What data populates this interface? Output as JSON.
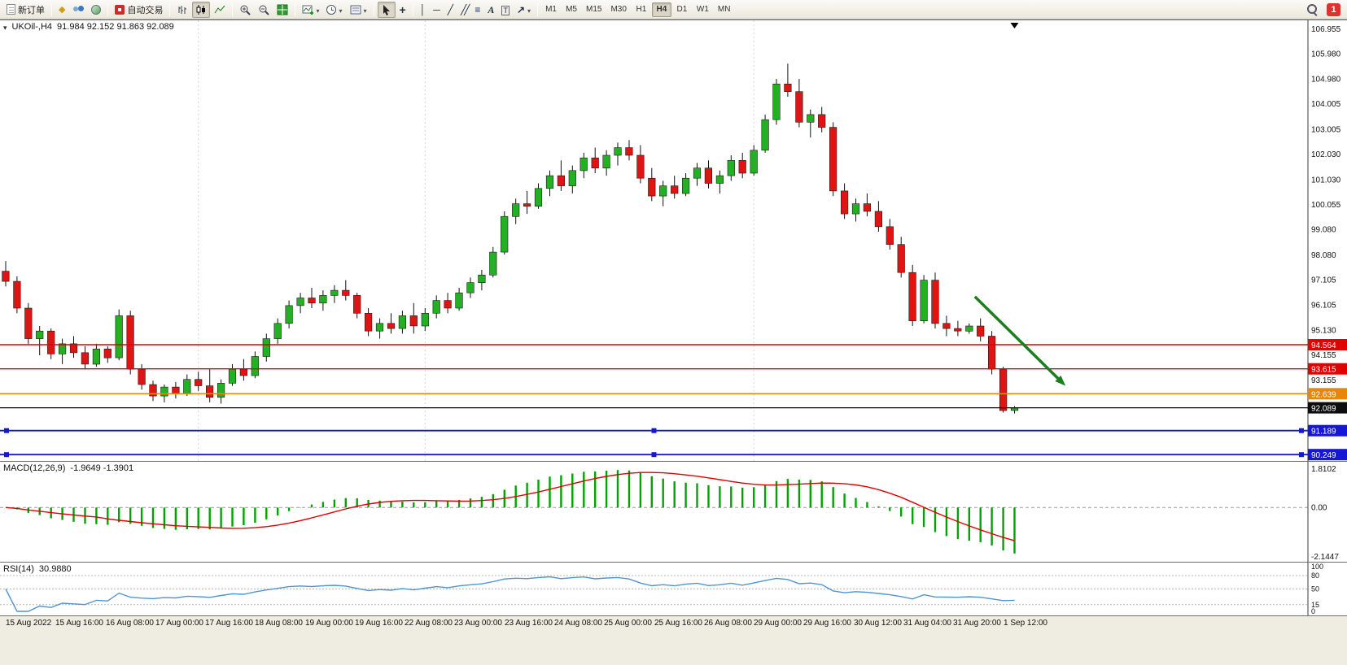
{
  "toolbar": {
    "new_order_label": "新订单",
    "autotrading_label": "自动交易",
    "timeframes": [
      "M1",
      "M5",
      "M15",
      "M30",
      "H1",
      "H4",
      "D1",
      "W1",
      "MN"
    ],
    "active_timeframe": "H4",
    "notification_badge": "1",
    "icons": [
      "new-order-icon",
      "market-watch-icon",
      "community-icon",
      "web-icon",
      "autotrading-icon",
      "bar-chart-icon",
      "candlestick-chart-icon",
      "line-chart-icon",
      "zoom-in-icon",
      "zoom-out-icon",
      "tile-windows-icon",
      "new-chart-icon",
      "clock-icon",
      "cursor-icon",
      "crosshair-icon",
      "vertical-line-icon",
      "horizontal-line-icon",
      "trendline-icon",
      "channel-icon",
      "fibonacci-icon",
      "text-icon",
      "label-icon",
      "arrow-tools-icon",
      "search-icon"
    ]
  },
  "chart": {
    "symbol_period": "UKOil-,H4",
    "ohlc": "91.984 92.152 91.863 92.089"
  },
  "price_axis": {
    "ticks": [
      "106.955",
      "105.980",
      "104.980",
      "104.005",
      "103.005",
      "102.030",
      "101.030",
      "100.055",
      "99.080",
      "98.080",
      "97.105",
      "96.105",
      "95.130",
      "94.155",
      "93.155"
    ]
  },
  "macd": {
    "name": "MACD(12,26,9)",
    "values": "-1.9649 -1.3901",
    "axis_max": "1.8102",
    "axis_zero": "0.00",
    "axis_min": "-2.1447"
  },
  "rsi": {
    "name": "RSI(14)",
    "value": "30.9880",
    "axis": [
      {
        "t": "100",
        "v": 100
      },
      {
        "t": "80",
        "v": 80
      },
      {
        "t": "50",
        "v": 50
      },
      {
        "t": "15",
        "v": 15
      },
      {
        "t": "0",
        "v": 0
      }
    ],
    "levels": [
      80,
      50,
      15
    ]
  },
  "time_axis": {
    "labels": [
      "15 Aug 2022",
      "15 Aug 16:00",
      "16 Aug 08:00",
      "17 Aug 00:00",
      "17 Aug 16:00",
      "18 Aug 08:00",
      "19 Aug 00:00",
      "19 Aug 16:00",
      "22 Aug 08:00",
      "23 Aug 00:00",
      "23 Aug 16:00",
      "24 Aug 08:00",
      "25 Aug 00:00",
      "25 Aug 16:00",
      "26 Aug 08:00",
      "29 Aug 00:00",
      "29 Aug 16:00",
      "30 Aug 12:00",
      "31 Aug 04:00",
      "31 Aug 20:00",
      "1 Sep 12:00"
    ]
  },
  "chart_data": {
    "type": "candlestick",
    "symbol": "UKOil-",
    "period": "H4",
    "ylim": [
      90.0,
      107.3
    ],
    "plot_fraction": 0.78,
    "up_color": "#23b123",
    "down_color": "#e11414",
    "wick_color": "#111111",
    "separators": [
      17,
      37,
      66
    ],
    "levels": [
      {
        "label": "94.564",
        "value": 94.564,
        "color": "#e00000",
        "width": 1.4,
        "handles": false
      },
      {
        "label": "93.615",
        "value": 93.615,
        "color": "#e00000",
        "width": 1.4,
        "handles": false
      },
      {
        "label": "92.639",
        "value": 92.639,
        "color": "#e8860b",
        "width": 1.6,
        "handles": false
      },
      {
        "label": "91.189",
        "value": 91.189,
        "color": "#1616d6",
        "width": 1.8,
        "handles": true
      },
      {
        "label": "90.249",
        "value": 90.249,
        "color": "#1616d6",
        "width": 1.8,
        "handles": true
      }
    ],
    "current_price": {
      "label": "92.089",
      "value": 92.089,
      "color": "#000000"
    },
    "arrow": {
      "from_index": 85.5,
      "from_price": 96.45,
      "to_index": 93.5,
      "to_price": 92.95,
      "color": "#1e7d1e"
    },
    "shift_marker_index": 89,
    "indicators": {
      "macd": {
        "fast": 12,
        "slow": 26,
        "signal": 9,
        "hist_color": "#00a400",
        "signal_color": "#e00000"
      },
      "rsi": {
        "period": 14,
        "color": "#4f94d4"
      }
    },
    "candles": [
      [
        97.45,
        97.85,
        96.85,
        97.05
      ],
      [
        97.05,
        97.25,
        95.8,
        96.0
      ],
      [
        96.0,
        96.2,
        94.6,
        94.8
      ],
      [
        94.8,
        95.3,
        94.15,
        95.1
      ],
      [
        95.1,
        95.2,
        94.0,
        94.2
      ],
      [
        94.2,
        94.8,
        93.8,
        94.6
      ],
      [
        94.6,
        94.9,
        94.05,
        94.25
      ],
      [
        94.25,
        94.5,
        93.6,
        93.8
      ],
      [
        93.8,
        94.6,
        93.7,
        94.4
      ],
      [
        94.4,
        94.5,
        93.85,
        94.05
      ],
      [
        94.05,
        95.95,
        93.95,
        95.7
      ],
      [
        95.7,
        95.9,
        93.4,
        93.6
      ],
      [
        93.6,
        93.8,
        92.8,
        93.0
      ],
      [
        93.0,
        93.15,
        92.35,
        92.55
      ],
      [
        92.55,
        93.0,
        92.3,
        92.9
      ],
      [
        92.9,
        93.1,
        92.45,
        92.65
      ],
      [
        92.65,
        93.4,
        92.55,
        93.2
      ],
      [
        93.2,
        93.5,
        92.75,
        92.95
      ],
      [
        92.95,
        93.6,
        92.3,
        92.5
      ],
      [
        92.5,
        93.2,
        92.25,
        93.05
      ],
      [
        93.05,
        93.8,
        92.95,
        93.6
      ],
      [
        93.6,
        94.0,
        93.15,
        93.35
      ],
      [
        93.35,
        94.3,
        93.25,
        94.1
      ],
      [
        94.1,
        95.0,
        93.9,
        94.8
      ],
      [
        94.8,
        95.6,
        94.6,
        95.4
      ],
      [
        95.4,
        96.3,
        95.2,
        96.1
      ],
      [
        96.1,
        96.6,
        95.8,
        96.4
      ],
      [
        96.4,
        96.8,
        96.0,
        96.2
      ],
      [
        96.2,
        96.7,
        95.9,
        96.5
      ],
      [
        96.5,
        96.9,
        96.2,
        96.7
      ],
      [
        96.7,
        97.1,
        96.3,
        96.5
      ],
      [
        96.5,
        96.6,
        95.6,
        95.8
      ],
      [
        95.8,
        96.0,
        94.9,
        95.1
      ],
      [
        95.1,
        95.6,
        94.8,
        95.4
      ],
      [
        95.4,
        95.8,
        95.0,
        95.2
      ],
      [
        95.2,
        95.9,
        95.0,
        95.7
      ],
      [
        95.7,
        96.2,
        95.0,
        95.3
      ],
      [
        95.3,
        96.0,
        95.1,
        95.8
      ],
      [
        95.8,
        96.5,
        95.6,
        96.3
      ],
      [
        96.3,
        96.6,
        95.8,
        96.0
      ],
      [
        96.0,
        96.8,
        95.9,
        96.6
      ],
      [
        96.6,
        97.2,
        96.4,
        97.0
      ],
      [
        97.0,
        97.5,
        96.7,
        97.3
      ],
      [
        97.3,
        98.4,
        97.2,
        98.2
      ],
      [
        98.2,
        99.8,
        98.1,
        99.6
      ],
      [
        99.6,
        100.3,
        99.3,
        100.1
      ],
      [
        100.1,
        100.6,
        99.7,
        100.0
      ],
      [
        100.0,
        100.9,
        99.9,
        100.7
      ],
      [
        100.7,
        101.4,
        100.4,
        101.2
      ],
      [
        101.2,
        101.8,
        100.6,
        100.8
      ],
      [
        100.8,
        101.6,
        100.5,
        101.4
      ],
      [
        101.4,
        102.1,
        101.1,
        101.9
      ],
      [
        101.9,
        102.3,
        101.3,
        101.5
      ],
      [
        101.5,
        102.2,
        101.2,
        102.0
      ],
      [
        102.0,
        102.5,
        101.6,
        102.3
      ],
      [
        102.3,
        102.6,
        101.8,
        102.0
      ],
      [
        102.0,
        102.4,
        100.9,
        101.1
      ],
      [
        101.1,
        101.5,
        100.2,
        100.4
      ],
      [
        100.4,
        101.0,
        100.0,
        100.8
      ],
      [
        100.8,
        101.2,
        100.3,
        100.5
      ],
      [
        100.5,
        101.3,
        100.4,
        101.1
      ],
      [
        101.1,
        101.7,
        100.8,
        101.5
      ],
      [
        101.5,
        101.8,
        100.7,
        100.9
      ],
      [
        100.9,
        101.4,
        100.5,
        101.2
      ],
      [
        101.2,
        102.0,
        101.0,
        101.8
      ],
      [
        101.8,
        102.1,
        101.1,
        101.3
      ],
      [
        101.3,
        102.4,
        101.2,
        102.2
      ],
      [
        102.2,
        103.6,
        102.1,
        103.4
      ],
      [
        103.4,
        105.0,
        103.2,
        104.8
      ],
      [
        104.8,
        105.6,
        104.3,
        104.5
      ],
      [
        104.5,
        105.0,
        103.1,
        103.3
      ],
      [
        103.3,
        103.8,
        102.7,
        103.6
      ],
      [
        103.6,
        103.9,
        102.9,
        103.1
      ],
      [
        103.1,
        103.3,
        100.4,
        100.6
      ],
      [
        100.6,
        100.9,
        99.5,
        99.7
      ],
      [
        99.7,
        100.3,
        99.4,
        100.1
      ],
      [
        100.1,
        100.5,
        99.6,
        99.8
      ],
      [
        99.8,
        100.2,
        99.0,
        99.2
      ],
      [
        99.2,
        99.5,
        98.3,
        98.5
      ],
      [
        98.5,
        98.8,
        97.2,
        97.4
      ],
      [
        97.4,
        97.7,
        95.3,
        95.5
      ],
      [
        95.5,
        97.3,
        95.4,
        97.1
      ],
      [
        97.1,
        97.4,
        95.2,
        95.4
      ],
      [
        95.4,
        95.7,
        94.9,
        95.2
      ],
      [
        95.2,
        95.5,
        94.9,
        95.1
      ],
      [
        95.1,
        95.4,
        95.0,
        95.3
      ],
      [
        95.3,
        95.6,
        94.7,
        94.9
      ],
      [
        94.9,
        95.1,
        93.4,
        93.6
      ],
      [
        93.6,
        93.7,
        91.9,
        91.98
      ],
      [
        91.984,
        92.152,
        91.863,
        92.089
      ]
    ]
  }
}
